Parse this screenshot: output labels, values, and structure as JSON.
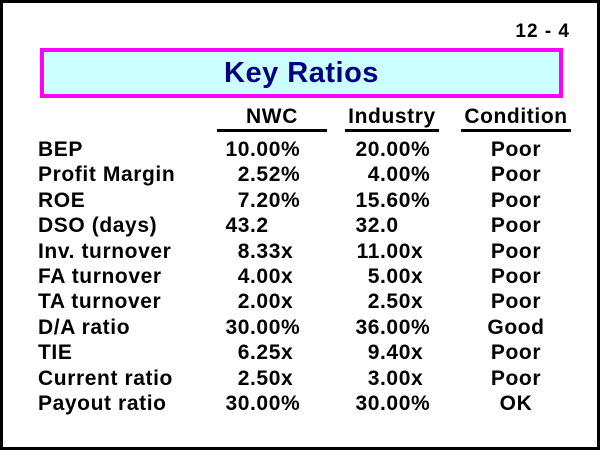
{
  "page_number": "12 - 4",
  "title": "Key Ratios",
  "colors": {
    "slide_border": "#000000",
    "title_border": "#FF00FF",
    "title_background": "#CCFFFF",
    "title_text": "#000080",
    "body_text": "#000000"
  },
  "table": {
    "headers": [
      "NWC",
      "Industry",
      "Condition"
    ],
    "rows": [
      {
        "label": "BEP",
        "nwc": "10.00%",
        "industry": "20.00%",
        "condition": "Poor"
      },
      {
        "label": "Profit Margin",
        "nwc": "2.52%",
        "industry": "4.00%",
        "condition": "Poor"
      },
      {
        "label": "ROE",
        "nwc": "7.20%",
        "industry": "15.60%",
        "condition": "Poor"
      },
      {
        "label": "DSO (days)",
        "nwc": "43.2",
        "industry": "32.0",
        "condition": "Poor"
      },
      {
        "label": "Inv. turnover",
        "nwc": "8.33x",
        "industry": "11.00x",
        "condition": "Poor"
      },
      {
        "label": "FA turnover",
        "nwc": "4.00x",
        "industry": "5.00x",
        "condition": "Poor"
      },
      {
        "label": "TA turnover",
        "nwc": "2.00x",
        "industry": "2.50x",
        "condition": "Poor"
      },
      {
        "label": "D/A ratio",
        "nwc": "30.00%",
        "industry": "36.00%",
        "condition": "Good"
      },
      {
        "label": "TIE",
        "nwc": "6.25x",
        "industry": "9.40x",
        "condition": "Poor"
      },
      {
        "label": "Current ratio",
        "nwc": "2.50x",
        "industry": "3.00x",
        "condition": "Poor"
      },
      {
        "label": "Payout ratio",
        "nwc": "30.00%",
        "industry": "30.00%",
        "condition": "OK"
      }
    ]
  }
}
